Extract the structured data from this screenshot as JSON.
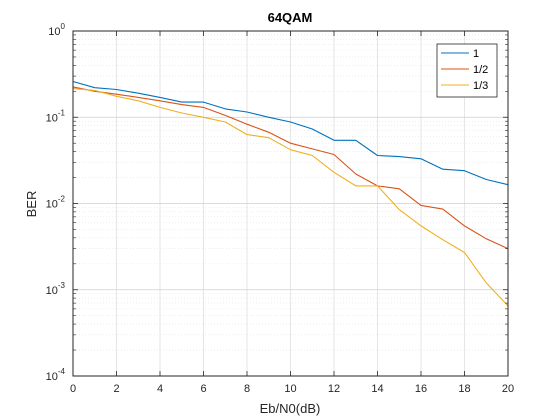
{
  "chart_data": {
    "type": "line",
    "title": "64QAM",
    "xlabel": "Eb/N0(dB)",
    "ylabel": "BER",
    "xlim": [
      0,
      20
    ],
    "ylim": [
      0.0001,
      1
    ],
    "yscale": "log",
    "grid": true,
    "minor_grid": true,
    "legend_placement": "top-right",
    "x_ticks": [
      "0",
      "2",
      "4",
      "6",
      "8",
      "10",
      "12",
      "14",
      "16",
      "18",
      "20"
    ],
    "y_ticks": [
      {
        "base": "10",
        "exp": "0"
      },
      {
        "base": "10",
        "exp": "-1"
      },
      {
        "base": "10",
        "exp": "-2"
      },
      {
        "base": "10",
        "exp": "-3"
      },
      {
        "base": "10",
        "exp": "-4"
      }
    ],
    "x": [
      0,
      1,
      2,
      3,
      4,
      5,
      6,
      7,
      8,
      9,
      10,
      11,
      12,
      13,
      14,
      15,
      16,
      17,
      18,
      19,
      20
    ],
    "series": [
      {
        "name": "1",
        "color": "#0072BD",
        "values": [
          0.26,
          0.22,
          0.21,
          0.19,
          0.17,
          0.15,
          0.15,
          0.125,
          0.115,
          0.1,
          0.088,
          0.073,
          0.054,
          0.054,
          0.036,
          0.035,
          0.033,
          0.025,
          0.024,
          0.019,
          0.0165
        ]
      },
      {
        "name": "1/2",
        "color": "#D95319",
        "values": [
          0.225,
          0.2,
          0.185,
          0.17,
          0.155,
          0.14,
          0.13,
          0.105,
          0.083,
          0.067,
          0.05,
          0.043,
          0.037,
          0.022,
          0.016,
          0.0148,
          0.0095,
          0.0086,
          0.0055,
          0.0039,
          0.003
        ]
      },
      {
        "name": "1/3",
        "color": "#EDB120",
        "values": [
          0.215,
          0.205,
          0.175,
          0.155,
          0.13,
          0.112,
          0.1,
          0.088,
          0.063,
          0.058,
          0.042,
          0.036,
          0.023,
          0.016,
          0.016,
          0.0085,
          0.0055,
          0.0038,
          0.0027,
          0.0012,
          0.00065
        ]
      }
    ]
  }
}
